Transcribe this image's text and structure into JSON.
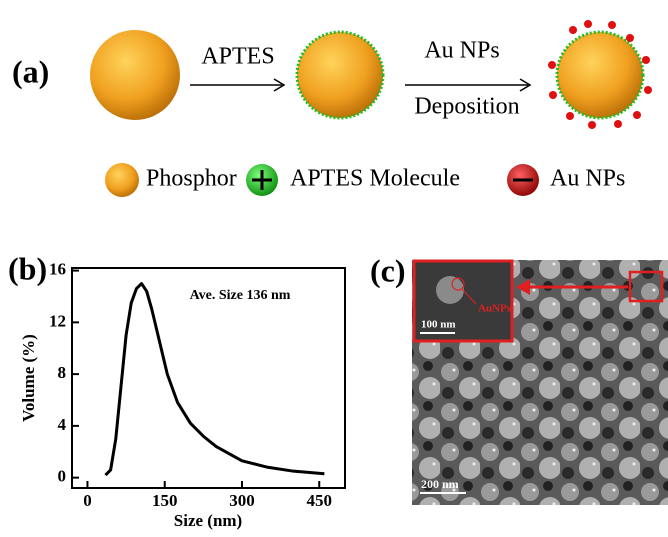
{
  "diagram": {
    "panel_a": "(a)",
    "arrow_1": "APTES",
    "arrow_2_top": "Au NPs",
    "arrow_2_bottom": "Deposition",
    "legend": [
      "Phosphor",
      "APTES Molecule",
      "Au NPs"
    ]
  },
  "chart_data": {
    "type": "line",
    "panel": "(b)",
    "xlabel": "Size (nm)",
    "ylabel": "Volume (%)",
    "annotation": "Ave. Size 136 nm",
    "x": [
      35,
      45,
      55,
      65,
      75,
      85,
      95,
      105,
      115,
      125,
      140,
      155,
      175,
      200,
      225,
      250,
      300,
      350,
      400,
      460
    ],
    "values": [
      0.2,
      0.6,
      3,
      7,
      11,
      13.5,
      14.6,
      15,
      14.4,
      13,
      10.5,
      8,
      5.8,
      4.2,
      3.2,
      2.4,
      1.3,
      0.8,
      0.5,
      0.3
    ],
    "color": "#000000",
    "xlim": [
      -30,
      500
    ],
    "ylim": [
      -0.8,
      16.2
    ],
    "xticks": [
      0,
      150,
      300,
      450
    ],
    "yticks": [
      0,
      4,
      8,
      12,
      16
    ]
  },
  "image": {
    "panel": "(c)",
    "inset_scale": "100 nm",
    "inset_label": "AuNPs",
    "scale": "200 nm"
  }
}
